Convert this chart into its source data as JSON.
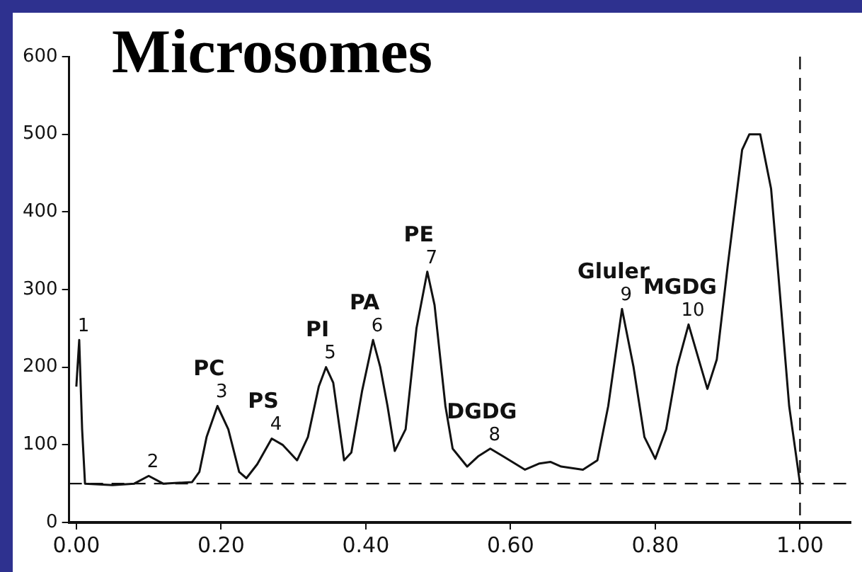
{
  "chart_data": {
    "type": "line",
    "title": "Microsomes",
    "color": "#111111",
    "marker": "none",
    "line_style": "solid",
    "x": [
      0,
      0.004,
      0.008,
      0.012,
      0.05,
      0.08,
      0.1,
      0.12,
      0.16,
      0.17,
      0.18,
      0.195,
      0.21,
      0.225,
      0.235,
      0.25,
      0.27,
      0.285,
      0.305,
      0.32,
      0.335,
      0.345,
      0.355,
      0.37,
      0.38,
      0.395,
      0.41,
      0.42,
      0.43,
      0.44,
      0.455,
      0.47,
      0.485,
      0.495,
      0.51,
      0.52,
      0.54,
      0.555,
      0.572,
      0.59,
      0.62,
      0.64,
      0.655,
      0.67,
      0.7,
      0.72,
      0.735,
      0.754,
      0.77,
      0.785,
      0.8,
      0.815,
      0.83,
      0.846,
      0.86,
      0.872,
      0.885,
      0.9,
      0.92,
      0.93,
      0.945,
      0.96,
      0.97,
      0.985,
      1.0
    ],
    "values": [
      175,
      235,
      120,
      50,
      48,
      50,
      60,
      50,
      52,
      65,
      110,
      150,
      120,
      65,
      57,
      75,
      108,
      100,
      80,
      110,
      175,
      200,
      180,
      80,
      90,
      170,
      235,
      200,
      150,
      92,
      120,
      250,
      323,
      280,
      150,
      95,
      72,
      85,
      95,
      85,
      68,
      76,
      78,
      72,
      68,
      80,
      150,
      275,
      200,
      110,
      82,
      120,
      200,
      255,
      210,
      172,
      210,
      330,
      480,
      500,
      500,
      430,
      320,
      150,
      50
    ],
    "xlim": [
      -0.01,
      1.07
    ],
    "xticks": [
      {
        "value": 0,
        "label": "0.00"
      },
      {
        "value": 0.2,
        "label": "0.20"
      },
      {
        "value": 0.4,
        "label": "0.40"
      },
      {
        "value": 0.6,
        "label": "0.60"
      },
      {
        "value": 0.8,
        "label": "0.80"
      },
      {
        "value": 1,
        "label": "1.00"
      }
    ],
    "ylim": [
      0,
      600
    ],
    "yticks": [
      0,
      100,
      200,
      300,
      400,
      500,
      600
    ],
    "ref_lines": [
      {
        "axis": "y",
        "value": 50,
        "line_style": "dashed"
      },
      {
        "axis": "x",
        "value": 1.0,
        "line_style": "dashed"
      }
    ],
    "annotations": [
      {
        "text": "1",
        "x": 0.004,
        "y": 235
      },
      {
        "text": "2",
        "x": 0.1,
        "y": 60
      },
      {
        "text": "3",
        "x": 0.195,
        "y": 150
      },
      {
        "text": "4",
        "x": 0.27,
        "y": 108
      },
      {
        "text": "5",
        "x": 0.345,
        "y": 200
      },
      {
        "text": "6",
        "x": 0.41,
        "y": 235
      },
      {
        "text": "7",
        "x": 0.485,
        "y": 323
      },
      {
        "text": "8",
        "x": 0.572,
        "y": 95
      },
      {
        "text": "9",
        "x": 0.754,
        "y": 275
      },
      {
        "text": "10",
        "x": 0.846,
        "y": 255
      },
      {
        "text": "PC",
        "x": 0.195,
        "y": 150
      },
      {
        "text": "PS",
        "x": 0.27,
        "y": 108
      },
      {
        "text": "PI",
        "x": 0.345,
        "y": 200
      },
      {
        "text": "PA",
        "x": 0.41,
        "y": 235
      },
      {
        "text": "PE",
        "x": 0.485,
        "y": 323
      },
      {
        "text": "DGDG",
        "x": 0.572,
        "y": 95
      },
      {
        "text": "Gluler",
        "x": 0.754,
        "y": 275
      },
      {
        "text": "MGDG",
        "x": 0.846,
        "y": 255
      }
    ]
  }
}
